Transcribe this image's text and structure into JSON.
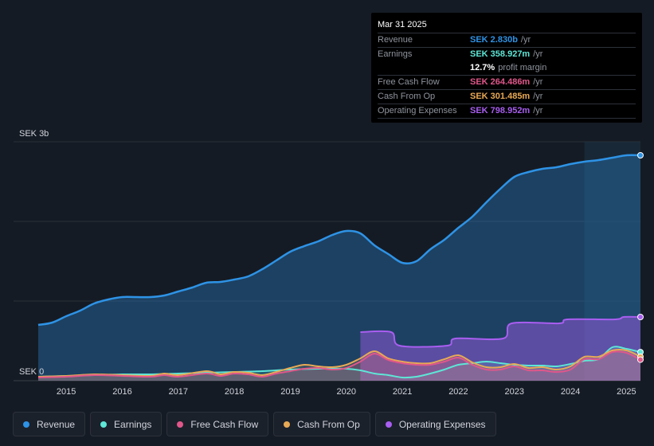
{
  "tooltip": {
    "date": "Mar 31 2025",
    "rows": [
      {
        "label": "Revenue",
        "value": "SEK 2.830b",
        "unit": "/yr",
        "color": "#2e93e6"
      },
      {
        "label": "Earnings",
        "value": "SEK 358.927m",
        "unit": "/yr",
        "color": "#5ee6d6"
      },
      {
        "label": "",
        "value": "12.7%",
        "unit": "profit margin",
        "color": "#ffffff"
      },
      {
        "label": "Free Cash Flow",
        "value": "SEK 264.486m",
        "unit": "/yr",
        "color": "#e0578a"
      },
      {
        "label": "Cash From Op",
        "value": "SEK 301.485m",
        "unit": "/yr",
        "color": "#e8a955"
      },
      {
        "label": "Operating Expenses",
        "value": "SEK 798.952m",
        "unit": "/yr",
        "color": "#a85ef0"
      }
    ]
  },
  "legend": [
    {
      "label": "Revenue",
      "color": "#2e93e6"
    },
    {
      "label": "Earnings",
      "color": "#5ee6d6"
    },
    {
      "label": "Free Cash Flow",
      "color": "#e0578a"
    },
    {
      "label": "Cash From Op",
      "color": "#e8a955"
    },
    {
      "label": "Operating Expenses",
      "color": "#a85ef0"
    }
  ],
  "chart_data": {
    "type": "area",
    "ylabel_top": "SEK 3b",
    "ylabel_bottom": "SEK 0",
    "ylim": [
      0,
      3.0
    ],
    "xlim": [
      2014.5,
      2025.25
    ],
    "x_ticks": [
      "2015",
      "2016",
      "2017",
      "2018",
      "2019",
      "2020",
      "2021",
      "2022",
      "2023",
      "2024",
      "2025"
    ],
    "highlight_from": 2024.25,
    "series": [
      {
        "name": "Revenue",
        "color": "#2e93e6",
        "x": [
          2014.5,
          2014.75,
          2015.0,
          2015.25,
          2015.5,
          2015.75,
          2016.0,
          2016.25,
          2016.5,
          2016.75,
          2017.0,
          2017.25,
          2017.5,
          2017.75,
          2018.0,
          2018.25,
          2018.5,
          2018.75,
          2019.0,
          2019.25,
          2019.5,
          2019.75,
          2020.0,
          2020.25,
          2020.5,
          2020.75,
          2021.0,
          2021.25,
          2021.5,
          2021.75,
          2022.0,
          2022.25,
          2022.5,
          2022.75,
          2023.0,
          2023.25,
          2023.5,
          2023.75,
          2024.0,
          2024.25,
          2024.5,
          2024.75,
          2025.0,
          2025.25
        ],
        "y": [
          0.7,
          0.73,
          0.81,
          0.88,
          0.97,
          1.02,
          1.05,
          1.05,
          1.05,
          1.07,
          1.12,
          1.17,
          1.23,
          1.24,
          1.27,
          1.31,
          1.4,
          1.51,
          1.62,
          1.69,
          1.75,
          1.83,
          1.88,
          1.85,
          1.7,
          1.59,
          1.48,
          1.5,
          1.65,
          1.77,
          1.92,
          2.06,
          2.24,
          2.41,
          2.56,
          2.62,
          2.66,
          2.68,
          2.72,
          2.75,
          2.77,
          2.8,
          2.83,
          2.83
        ]
      },
      {
        "name": "Earnings",
        "color": "#5ee6d6",
        "x": [
          2014.5,
          2015.0,
          2015.5,
          2016.0,
          2016.5,
          2017.0,
          2017.5,
          2018.0,
          2018.5,
          2019.0,
          2019.5,
          2020.0,
          2020.25,
          2020.5,
          2020.75,
          2021.0,
          2021.25,
          2021.5,
          2021.75,
          2022.0,
          2022.25,
          2022.5,
          2022.75,
          2023.0,
          2023.25,
          2023.5,
          2023.75,
          2024.0,
          2024.25,
          2024.5,
          2024.75,
          2025.0,
          2025.25
        ],
        "y": [
          0.05,
          0.06,
          0.07,
          0.08,
          0.08,
          0.09,
          0.1,
          0.11,
          0.12,
          0.14,
          0.15,
          0.15,
          0.13,
          0.09,
          0.07,
          0.04,
          0.05,
          0.09,
          0.14,
          0.2,
          0.22,
          0.24,
          0.22,
          0.2,
          0.19,
          0.19,
          0.18,
          0.21,
          0.25,
          0.27,
          0.42,
          0.4,
          0.359
        ]
      },
      {
        "name": "Free Cash Flow",
        "color": "#e0578a",
        "x": [
          2014.5,
          2015.0,
          2015.5,
          2016.0,
          2016.5,
          2016.75,
          2017.0,
          2017.5,
          2017.75,
          2018.0,
          2018.25,
          2018.5,
          2018.75,
          2019.0,
          2019.25,
          2019.5,
          2019.75,
          2020.0,
          2020.25,
          2020.5,
          2020.75,
          2021.0,
          2021.25,
          2021.5,
          2021.75,
          2022.0,
          2022.25,
          2022.5,
          2022.75,
          2023.0,
          2023.25,
          2023.5,
          2023.75,
          2024.0,
          2024.25,
          2024.5,
          2024.75,
          2025.0,
          2025.25
        ],
        "y": [
          0.04,
          0.05,
          0.07,
          0.06,
          0.05,
          0.07,
          0.05,
          0.09,
          0.06,
          0.09,
          0.08,
          0.05,
          0.09,
          0.12,
          0.15,
          0.16,
          0.14,
          0.16,
          0.24,
          0.34,
          0.26,
          0.22,
          0.2,
          0.2,
          0.24,
          0.29,
          0.2,
          0.14,
          0.14,
          0.18,
          0.13,
          0.13,
          0.11,
          0.14,
          0.27,
          0.27,
          0.36,
          0.35,
          0.264
        ]
      },
      {
        "name": "Cash From Op",
        "color": "#e8a955",
        "x": [
          2014.5,
          2015.0,
          2015.5,
          2016.0,
          2016.5,
          2016.75,
          2017.0,
          2017.5,
          2017.75,
          2018.0,
          2018.25,
          2018.5,
          2018.75,
          2019.0,
          2019.25,
          2019.5,
          2019.75,
          2020.0,
          2020.25,
          2020.5,
          2020.75,
          2021.0,
          2021.25,
          2021.5,
          2021.75,
          2022.0,
          2022.25,
          2022.5,
          2022.75,
          2023.0,
          2023.25,
          2023.5,
          2023.75,
          2024.0,
          2024.25,
          2024.5,
          2024.75,
          2025.0,
          2025.25
        ],
        "y": [
          0.05,
          0.06,
          0.08,
          0.07,
          0.06,
          0.09,
          0.07,
          0.12,
          0.08,
          0.11,
          0.1,
          0.07,
          0.11,
          0.16,
          0.2,
          0.18,
          0.17,
          0.2,
          0.28,
          0.37,
          0.28,
          0.24,
          0.22,
          0.22,
          0.27,
          0.32,
          0.23,
          0.17,
          0.17,
          0.21,
          0.16,
          0.17,
          0.14,
          0.18,
          0.3,
          0.3,
          0.38,
          0.38,
          0.301
        ]
      },
      {
        "name": "Operating Expenses",
        "color": "#a85ef0",
        "x": [
          2020.25,
          2020.8,
          2020.95,
          2021.8,
          2021.95,
          2022.8,
          2022.95,
          2023.8,
          2023.95,
          2024.8,
          2024.95,
          2025.25
        ],
        "y": [
          0.61,
          0.61,
          0.44,
          0.44,
          0.53,
          0.53,
          0.72,
          0.72,
          0.77,
          0.77,
          0.8,
          0.8
        ]
      }
    ]
  }
}
